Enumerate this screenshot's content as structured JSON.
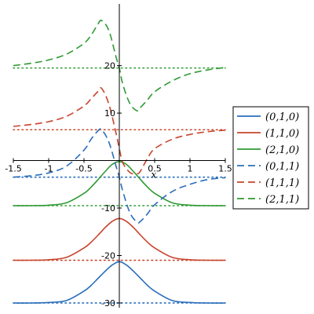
{
  "colors": {
    "blue": "#2a6ebb",
    "red": "#c8442b",
    "green": "#2e9a33"
  },
  "chart_data": {
    "type": "line",
    "xlabel": "x",
    "ylabel": "",
    "xlim": [
      -1.5,
      1.5
    ],
    "ylim": [
      -31,
      33
    ],
    "x_ticks": [
      -1.5,
      -1,
      -0.5,
      0.5,
      1,
      1.5
    ],
    "x_tick_labels": [
      "-1.5",
      "-1",
      "-0.5",
      "0.5",
      "1",
      "1.5"
    ],
    "y_ticks": [
      20,
      10,
      -10,
      -20,
      -30
    ],
    "y_tick_labels": [
      "20",
      "10",
      "-10",
      "-20",
      "-30"
    ],
    "legend_position": "right",
    "series": [
      {
        "name": "(0,1,0)",
        "color": "blue",
        "dash": "solid",
        "baseline": -30,
        "x": [
          -1.5,
          -1.25,
          -1,
          -0.75,
          -0.5,
          -0.4,
          -0.3,
          -0.2,
          -0.1,
          0,
          0.1,
          0.2,
          0.3,
          0.4,
          0.5,
          0.75,
          1,
          1.25,
          1.5
        ],
        "y": [
          -30,
          -30,
          -29.9,
          -29.5,
          -27.5,
          -26.3,
          -24.8,
          -23.3,
          -22,
          -21.3,
          -22,
          -23.3,
          -24.8,
          -26.3,
          -27.5,
          -29.5,
          -29.9,
          -30,
          -30
        ]
      },
      {
        "name": "(1,1,0)",
        "color": "red",
        "dash": "solid",
        "baseline": -21,
        "x": [
          -1.5,
          -1.25,
          -1,
          -0.75,
          -0.5,
          -0.4,
          -0.3,
          -0.2,
          -0.1,
          0,
          0.1,
          0.2,
          0.3,
          0.4,
          0.5,
          0.75,
          1,
          1.25,
          1.5
        ],
        "y": [
          -21,
          -21,
          -20.9,
          -20.4,
          -18.4,
          -17.2,
          -15.7,
          -14.1,
          -12.8,
          -12.2,
          -12.8,
          -14.1,
          -15.7,
          -17.2,
          -18.4,
          -20.4,
          -20.9,
          -21,
          -21
        ]
      },
      {
        "name": "(2,1,0)",
        "color": "green",
        "dash": "solid",
        "baseline": -9.5,
        "x": [
          -1.5,
          -1.25,
          -1,
          -0.75,
          -0.5,
          -0.4,
          -0.3,
          -0.2,
          -0.1,
          0,
          0.1,
          0.2,
          0.3,
          0.4,
          0.5,
          0.75,
          1,
          1.25,
          1.5
        ],
        "y": [
          -9.5,
          -9.5,
          -9.4,
          -8.9,
          -6.9,
          -5.6,
          -4.0,
          -2.3,
          -0.8,
          -0.2,
          -0.8,
          -2.3,
          -4.0,
          -5.6,
          -6.9,
          -8.9,
          -9.4,
          -9.5,
          -9.5
        ]
      },
      {
        "name": "(0,1,1)",
        "color": "blue",
        "dash": "dashed",
        "baseline": -3.5,
        "x": [
          -1.5,
          -1.25,
          -1,
          -0.75,
          -0.5,
          -0.4,
          -0.3,
          -0.25,
          -0.15,
          -0.05,
          0,
          0.05,
          0.15,
          0.25,
          0.3,
          0.4,
          0.5,
          0.75,
          1,
          1.25,
          1.5
        ],
        "y": [
          -3.5,
          -3.2,
          -2.6,
          -1.2,
          2.2,
          4.5,
          6.3,
          6.5,
          4.0,
          -1.0,
          -3.5,
          -6.5,
          -11.0,
          -13.0,
          -12.8,
          -11.2,
          -9.3,
          -6.5,
          -5.0,
          -4.0,
          -3.6
        ]
      },
      {
        "name": "(1,1,1)",
        "color": "red",
        "dash": "dashed",
        "baseline": 6.5,
        "x": [
          -1.5,
          -1.25,
          -1,
          -0.75,
          -0.5,
          -0.4,
          -0.3,
          -0.25,
          -0.15,
          -0.05,
          0,
          0.05,
          0.15,
          0.25,
          0.3,
          0.4,
          0.5,
          0.75,
          1,
          1.25,
          1.5
        ],
        "y": [
          7.2,
          7.6,
          8.2,
          9.3,
          11.5,
          13.0,
          14.6,
          15.2,
          12.0,
          6.0,
          2.5,
          -0.5,
          -2.5,
          -2.8,
          -2.2,
          0.5,
          2.5,
          4.5,
          5.5,
          6.1,
          6.4
        ]
      },
      {
        "name": "(2,1,1)",
        "color": "green",
        "dash": "dashed",
        "baseline": 19.5,
        "x": [
          -1.5,
          -1.25,
          -1,
          -0.75,
          -0.5,
          -0.4,
          -0.3,
          -0.25,
          -0.15,
          -0.05,
          0,
          0.05,
          0.15,
          0.25,
          0.3,
          0.4,
          0.5,
          0.75,
          1,
          1.25,
          1.5
        ],
        "y": [
          20,
          20.5,
          21.2,
          22.4,
          24.7,
          26.4,
          28.8,
          29.5,
          27.5,
          22.0,
          19.5,
          16.0,
          12.0,
          10.5,
          11.2,
          12.8,
          14.5,
          16.8,
          18.3,
          19.1,
          19.6
        ]
      }
    ]
  }
}
